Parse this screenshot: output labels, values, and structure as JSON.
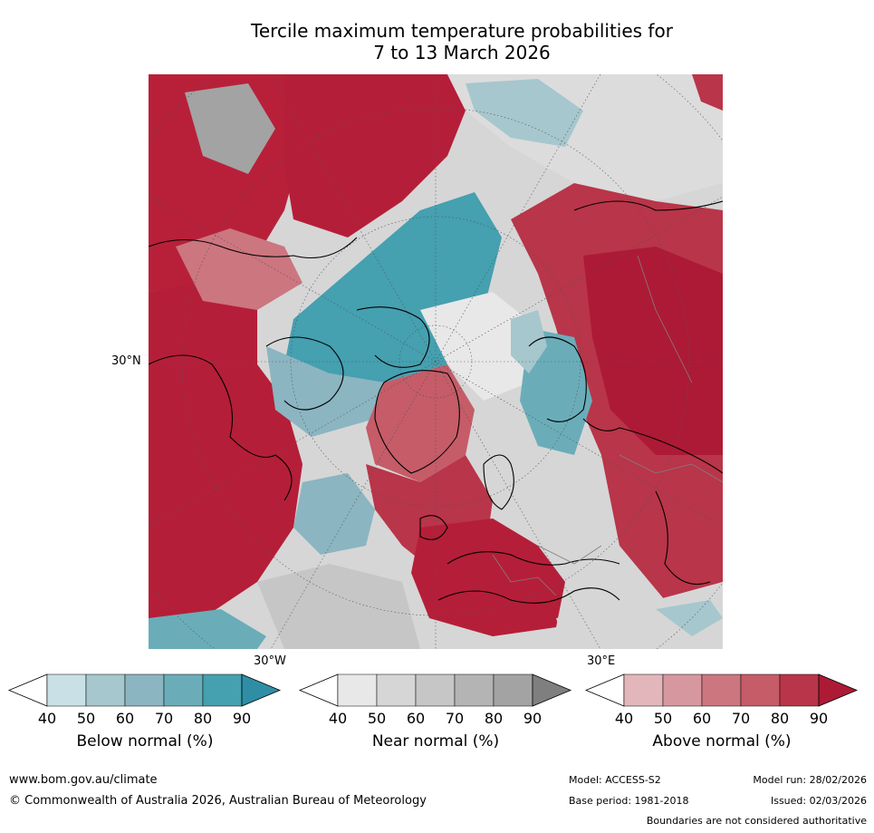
{
  "title": {
    "line1": "Tercile maximum temperature probabilities for",
    "line2": "7 to 13 March 2026"
  },
  "map": {
    "axis_labels": {
      "lat_30n": "30°N",
      "lon_30w": "30°W",
      "lon_30e": "30°E"
    }
  },
  "colorbars": [
    {
      "id": "below",
      "label": "Below normal (%)",
      "ticks": [
        "40",
        "50",
        "60",
        "70",
        "80",
        "90"
      ],
      "colors": [
        "#c9e1e6",
        "#a6c7cd",
        "#8bb5c1",
        "#6aadb9",
        "#45a0b0"
      ],
      "extend_color": "#2f8ea6"
    },
    {
      "id": "near",
      "label": "Near normal (%)",
      "ticks": [
        "40",
        "50",
        "60",
        "70",
        "80",
        "90"
      ],
      "colors": [
        "#e8e8e8",
        "#d6d6d6",
        "#c6c6c6",
        "#b4b4b4",
        "#a3a3a3"
      ],
      "extend_color": "#7f7f7f"
    },
    {
      "id": "above",
      "label": "Above normal (%)",
      "ticks": [
        "40",
        "50",
        "60",
        "70",
        "80",
        "90"
      ],
      "colors": [
        "#e2b6bb",
        "#d7979f",
        "#cc7680",
        "#c55c68",
        "#b93549"
      ],
      "extend_color": "#ad1a36"
    }
  ],
  "footer": {
    "website": "www.bom.gov.au/climate",
    "copyright": "© Commonwealth of Australia 2026, Australian Bureau of Meteorology",
    "model": "Model: ACCESS-S2",
    "base_period": "Base period: 1981-2018",
    "model_run": "Model run: 28/02/2026",
    "issued": "Issued: 02/03/2026",
    "disclaimer": "Boundaries are not considered authoritative"
  }
}
